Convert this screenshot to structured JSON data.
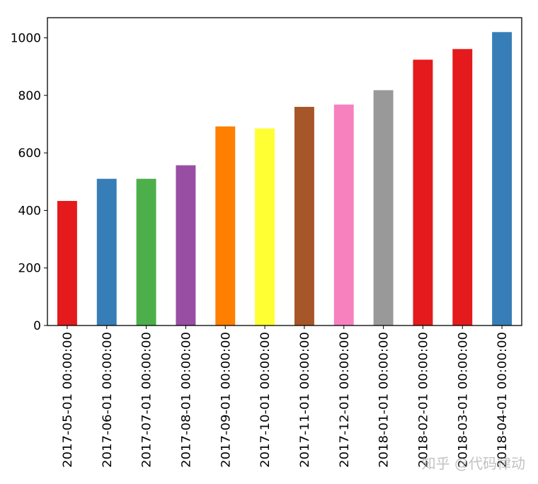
{
  "chart_data": {
    "type": "bar",
    "title": "",
    "xlabel": "",
    "ylabel": "",
    "ylim": [
      0,
      1070
    ],
    "yticks": [
      0,
      200,
      400,
      600,
      800,
      1000
    ],
    "categories": [
      "2017-05-01 00:00:00",
      "2017-06-01 00:00:00",
      "2017-07-01 00:00:00",
      "2017-08-01 00:00:00",
      "2017-09-01 00:00:00",
      "2017-10-01 00:00:00",
      "2017-11-01 00:00:00",
      "2017-12-01 00:00:00",
      "2018-01-01 00:00:00",
      "2018-02-01 00:00:00",
      "2018-03-01 00:00:00",
      "2018-04-01 00:00:00"
    ],
    "values": [
      433,
      510,
      510,
      557,
      692,
      685,
      760,
      768,
      818,
      924,
      961,
      1020
    ],
    "colors": [
      "#e41a1c",
      "#377eb8",
      "#4daf4a",
      "#984ea3",
      "#ff7f00",
      "#ffff33",
      "#a65628",
      "#f781bf",
      "#999999",
      "#e41a1c",
      "#e41a1c",
      "#377eb8"
    ],
    "grid": false,
    "legend": false
  },
  "watermark": "知乎 @代码律动"
}
